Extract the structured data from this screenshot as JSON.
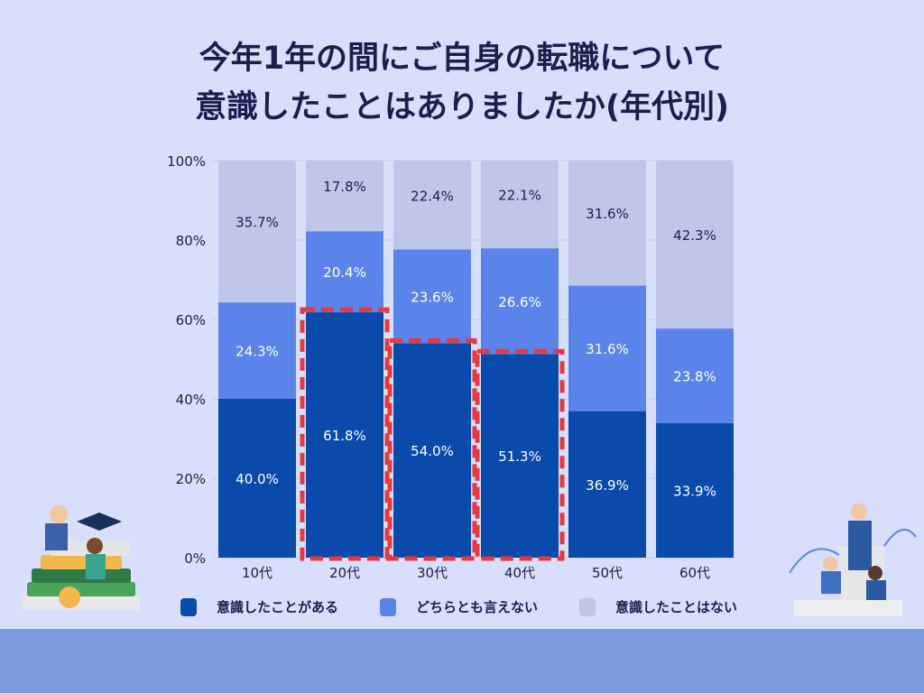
{
  "title_lines": [
    "今年1年の間にご自身の転職について",
    "意識したことはありましたか(年代別)"
  ],
  "chart_data": {
    "type": "bar",
    "stacked": true,
    "title": "今年1年の間にご自身の転職について意識したことはありましたか(年代別)",
    "categories": [
      "10代",
      "20代",
      "30代",
      "40代",
      "50代",
      "60代"
    ],
    "ylim": [
      0,
      100
    ],
    "yticks": [
      "0%",
      "20%",
      "40%",
      "60%",
      "80%",
      "100%"
    ],
    "grid": true,
    "legend_position": "bottom",
    "series": [
      {
        "name": "意識したことがある",
        "color": "#0a4aab",
        "values": [
          40.0,
          61.8,
          54.0,
          51.3,
          36.9,
          33.9
        ],
        "labels": [
          "40.0%",
          "61.8%",
          "54.0%",
          "51.3%",
          "36.9%",
          "33.9%"
        ]
      },
      {
        "name": "どちらとも言えない",
        "color": "#5b84ea",
        "values": [
          24.3,
          20.4,
          23.6,
          26.6,
          31.6,
          23.8
        ],
        "labels": [
          "24.3%",
          "20.4%",
          "23.6%",
          "26.6%",
          "31.6%",
          "23.8%"
        ]
      },
      {
        "name": "意識したことはない",
        "color": "#c0c5ea",
        "values": [
          35.7,
          17.8,
          22.4,
          22.1,
          31.6,
          42.3
        ],
        "labels": [
          "35.7%",
          "17.8%",
          "22.4%",
          "22.1%",
          "31.6%",
          "42.3%"
        ]
      }
    ],
    "highlighted_categories": [
      "20代",
      "30代",
      "40代"
    ],
    "highlight_color": "#e8383d"
  },
  "colors": {
    "background": "#d7dffa",
    "footer_band": "#7b9be0",
    "title": "#1b1f4f"
  }
}
